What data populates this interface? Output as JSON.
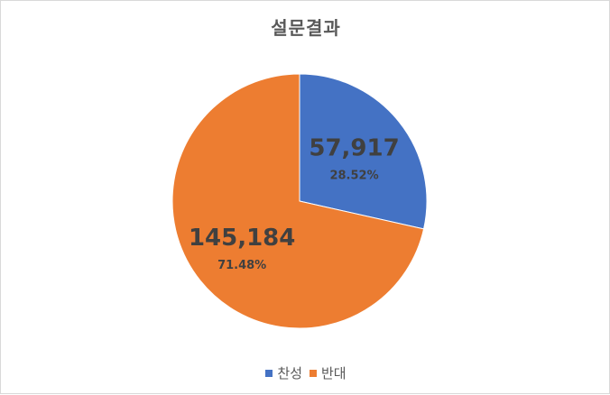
{
  "chart_data": {
    "type": "pie",
    "title": "설문결과",
    "slices": [
      {
        "label": "찬성",
        "value": 57917,
        "value_label": "57,917",
        "percent_label": "28.52%",
        "color": "#4472C4"
      },
      {
        "label": "반대",
        "value": 145184,
        "value_label": "145,184",
        "percent_label": "71.48%",
        "color": "#ED7D31"
      }
    ],
    "legend_position": "bottom"
  }
}
